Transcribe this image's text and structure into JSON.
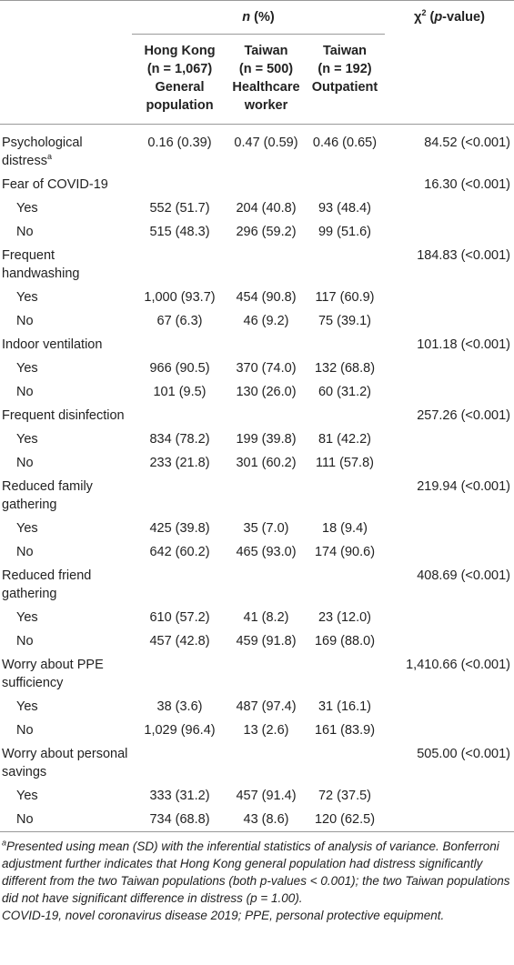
{
  "header": {
    "group_label": {
      "italic": "n",
      "text": " (%)"
    },
    "chi_label": {
      "symbol": "χ",
      "sup": "2",
      "open": " (",
      "italic": "p",
      "text": "-value)"
    },
    "columns": [
      [
        "Hong Kong",
        "(n = 1,067)",
        "General",
        "population"
      ],
      [
        "Taiwan",
        "(n = 500)",
        "Healthcare",
        "worker"
      ],
      [
        "Taiwan",
        "(n = 192)",
        "Outpatient"
      ]
    ]
  },
  "table": {
    "rows": [
      {
        "label": "Psychological distress",
        "sup": "a",
        "cells": [
          "0.16 (0.39)",
          "0.47 (0.59)",
          "0.46 (0.65)"
        ],
        "chi": "84.52 (<0.001)"
      },
      {
        "label": "Fear of COVID-19",
        "chi": "16.30 (<0.001)"
      },
      {
        "label": "Yes",
        "sub": true,
        "cells": [
          "552 (51.7)",
          "204 (40.8)",
          "93 (48.4)"
        ]
      },
      {
        "label": "No",
        "sub": true,
        "cells": [
          "515 (48.3)",
          "296 (59.2)",
          "99 (51.6)"
        ]
      },
      {
        "label": "Frequent handwashing",
        "chi": "184.83 (<0.001)"
      },
      {
        "label": "Yes",
        "sub": true,
        "cells": [
          "1,000 (93.7)",
          "454 (90.8)",
          "117 (60.9)"
        ]
      },
      {
        "label": "No",
        "sub": true,
        "cells": [
          "67 (6.3)",
          "46 (9.2)",
          "75 (39.1)"
        ]
      },
      {
        "label": "Indoor ventilation",
        "chi": "101.18 (<0.001)"
      },
      {
        "label": "Yes",
        "sub": true,
        "cells": [
          "966 (90.5)",
          "370 (74.0)",
          "132 (68.8)"
        ]
      },
      {
        "label": "No",
        "sub": true,
        "cells": [
          "101 (9.5)",
          "130 (26.0)",
          "60 (31.2)"
        ]
      },
      {
        "label": "Frequent disinfection",
        "chi": "257.26 (<0.001)"
      },
      {
        "label": "Yes",
        "sub": true,
        "cells": [
          "834 (78.2)",
          "199 (39.8)",
          "81 (42.2)"
        ]
      },
      {
        "label": "No",
        "sub": true,
        "cells": [
          "233 (21.8)",
          "301 (60.2)",
          "111 (57.8)"
        ]
      },
      {
        "label": "Reduced family gathering",
        "chi": "219.94 (<0.001)"
      },
      {
        "label": "Yes",
        "sub": true,
        "cells": [
          "425 (39.8)",
          "35 (7.0)",
          "18 (9.4)"
        ]
      },
      {
        "label": "No",
        "sub": true,
        "cells": [
          "642 (60.2)",
          "465 (93.0)",
          "174 (90.6)"
        ]
      },
      {
        "label": "Reduced friend gathering",
        "chi": "408.69 (<0.001)"
      },
      {
        "label": "Yes",
        "sub": true,
        "cells": [
          "610 (57.2)",
          "41 (8.2)",
          "23 (12.0)"
        ]
      },
      {
        "label": "No",
        "sub": true,
        "cells": [
          "457 (42.8)",
          "459 (91.8)",
          "169 (88.0)"
        ]
      },
      {
        "label": "Worry about PPE sufficiency",
        "chi": "1,410.66 (<0.001)"
      },
      {
        "label": "Yes",
        "sub": true,
        "cells": [
          "38 (3.6)",
          "487 (97.4)",
          "31 (16.1)"
        ]
      },
      {
        "label": "No",
        "sub": true,
        "cells": [
          "1,029 (96.4)",
          "13 (2.6)",
          "161 (83.9)"
        ]
      },
      {
        "label": "Worry about personal savings",
        "chi": "505.00 (<0.001)"
      },
      {
        "label": "Yes",
        "sub": true,
        "cells": [
          "333 (31.2)",
          "457 (91.4)",
          "72 (37.5)"
        ]
      },
      {
        "label": "No",
        "sub": true,
        "cells": [
          "734 (68.8)",
          "43 (8.6)",
          "120 (62.5)"
        ]
      }
    ]
  },
  "footnote": {
    "sup": "a",
    "text": "Presented using mean (SD) with the inferential statistics of analysis of variance. Bonferroni adjustment further indicates that Hong Kong general population had distress significantly different from the two Taiwan populations (both p-values < 0.001); the two Taiwan populations did not have significant difference in distress (p = 1.00).",
    "abbrev": "COVID-19, novel coronavirus disease 2019; PPE, personal protective equipment."
  }
}
